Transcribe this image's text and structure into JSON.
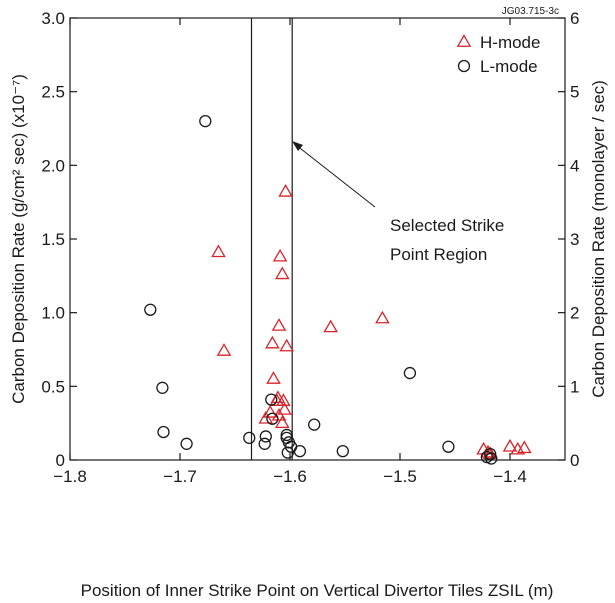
{
  "chart_data": {
    "type": "scatter",
    "code_label": "JG03.715-3c",
    "xlabel": "Position of Inner Strike Point on Vertical Divertor Tiles ZSIL (m)",
    "ylabel_left": "Carbon Deposition Rate (g/cm² sec) (x10⁻⁷)",
    "ylabel_right": "Carbon Deposition Rate (monolayer / sec)",
    "xlim": [
      -1.8,
      -1.35
    ],
    "ylim_left": [
      0,
      3.0
    ],
    "ylim_right": [
      0,
      6
    ],
    "xticks": [
      -1.8,
      -1.7,
      -1.6,
      -1.5,
      -1.4
    ],
    "xtick_labels": [
      "−1.8",
      "−1.7",
      "−1.6",
      "−1.5",
      "−1.4"
    ],
    "yticks_left": [
      0,
      0.5,
      1.0,
      1.5,
      2.0,
      2.5,
      3.0
    ],
    "ytick_labels_left": [
      "0",
      "0.5",
      "1.0",
      "1.5",
      "2.0",
      "2.5",
      "3.0"
    ],
    "yticks_right": [
      0,
      1,
      2,
      3,
      4,
      5,
      6
    ],
    "ytick_labels_right": [
      "0",
      "1",
      "2",
      "3",
      "4",
      "5",
      "6"
    ],
    "region": {
      "x": [
        -1.635,
        -1.598
      ],
      "label_lines": [
        "Selected Strike",
        "Point Region"
      ]
    },
    "legend_placement": "top-right",
    "colors": {
      "hmode": "#d8232a",
      "lmode": "#1a1a1a",
      "axes": "#1a1a1a"
    },
    "series": [
      {
        "name": "H-mode",
        "marker": "triangle",
        "points": [
          [
            -1.665,
            1.41
          ],
          [
            -1.66,
            0.74
          ],
          [
            -1.622,
            0.28
          ],
          [
            -1.618,
            0.32
          ],
          [
            -1.616,
            0.79
          ],
          [
            -1.615,
            0.55
          ],
          [
            -1.612,
            0.4
          ],
          [
            -1.611,
            0.42
          ],
          [
            -1.61,
            0.91
          ],
          [
            -1.61,
            0.3
          ],
          [
            -1.609,
            1.38
          ],
          [
            -1.607,
            1.26
          ],
          [
            -1.607,
            0.25
          ],
          [
            -1.606,
            0.4
          ],
          [
            -1.605,
            0.34
          ],
          [
            -1.604,
            1.82
          ],
          [
            -1.603,
            0.77
          ],
          [
            -1.563,
            0.9
          ],
          [
            -1.516,
            0.96
          ],
          [
            -1.424,
            0.07
          ],
          [
            -1.42,
            0.05
          ],
          [
            -1.418,
            0.04
          ],
          [
            -1.4,
            0.09
          ],
          [
            -1.393,
            0.07
          ],
          [
            -1.387,
            0.08
          ]
        ]
      },
      {
        "name": "L-mode",
        "marker": "circle",
        "points": [
          [
            -1.727,
            1.02
          ],
          [
            -1.716,
            0.49
          ],
          [
            -1.715,
            0.19
          ],
          [
            -1.694,
            0.11
          ],
          [
            -1.677,
            2.3
          ],
          [
            -1.637,
            0.15
          ],
          [
            -1.623,
            0.11
          ],
          [
            -1.622,
            0.16
          ],
          [
            -1.617,
            0.41
          ],
          [
            -1.616,
            0.28
          ],
          [
            -1.603,
            0.15
          ],
          [
            -1.603,
            0.17
          ],
          [
            -1.602,
            0.05
          ],
          [
            -1.601,
            0.12
          ],
          [
            -1.599,
            0.09
          ],
          [
            -1.591,
            0.06
          ],
          [
            -1.578,
            0.24
          ],
          [
            -1.552,
            0.06
          ],
          [
            -1.491,
            0.59
          ],
          [
            -1.456,
            0.09
          ],
          [
            -1.421,
            0.02
          ],
          [
            -1.418,
            0.04
          ],
          [
            -1.417,
            0.01
          ]
        ]
      }
    ]
  }
}
